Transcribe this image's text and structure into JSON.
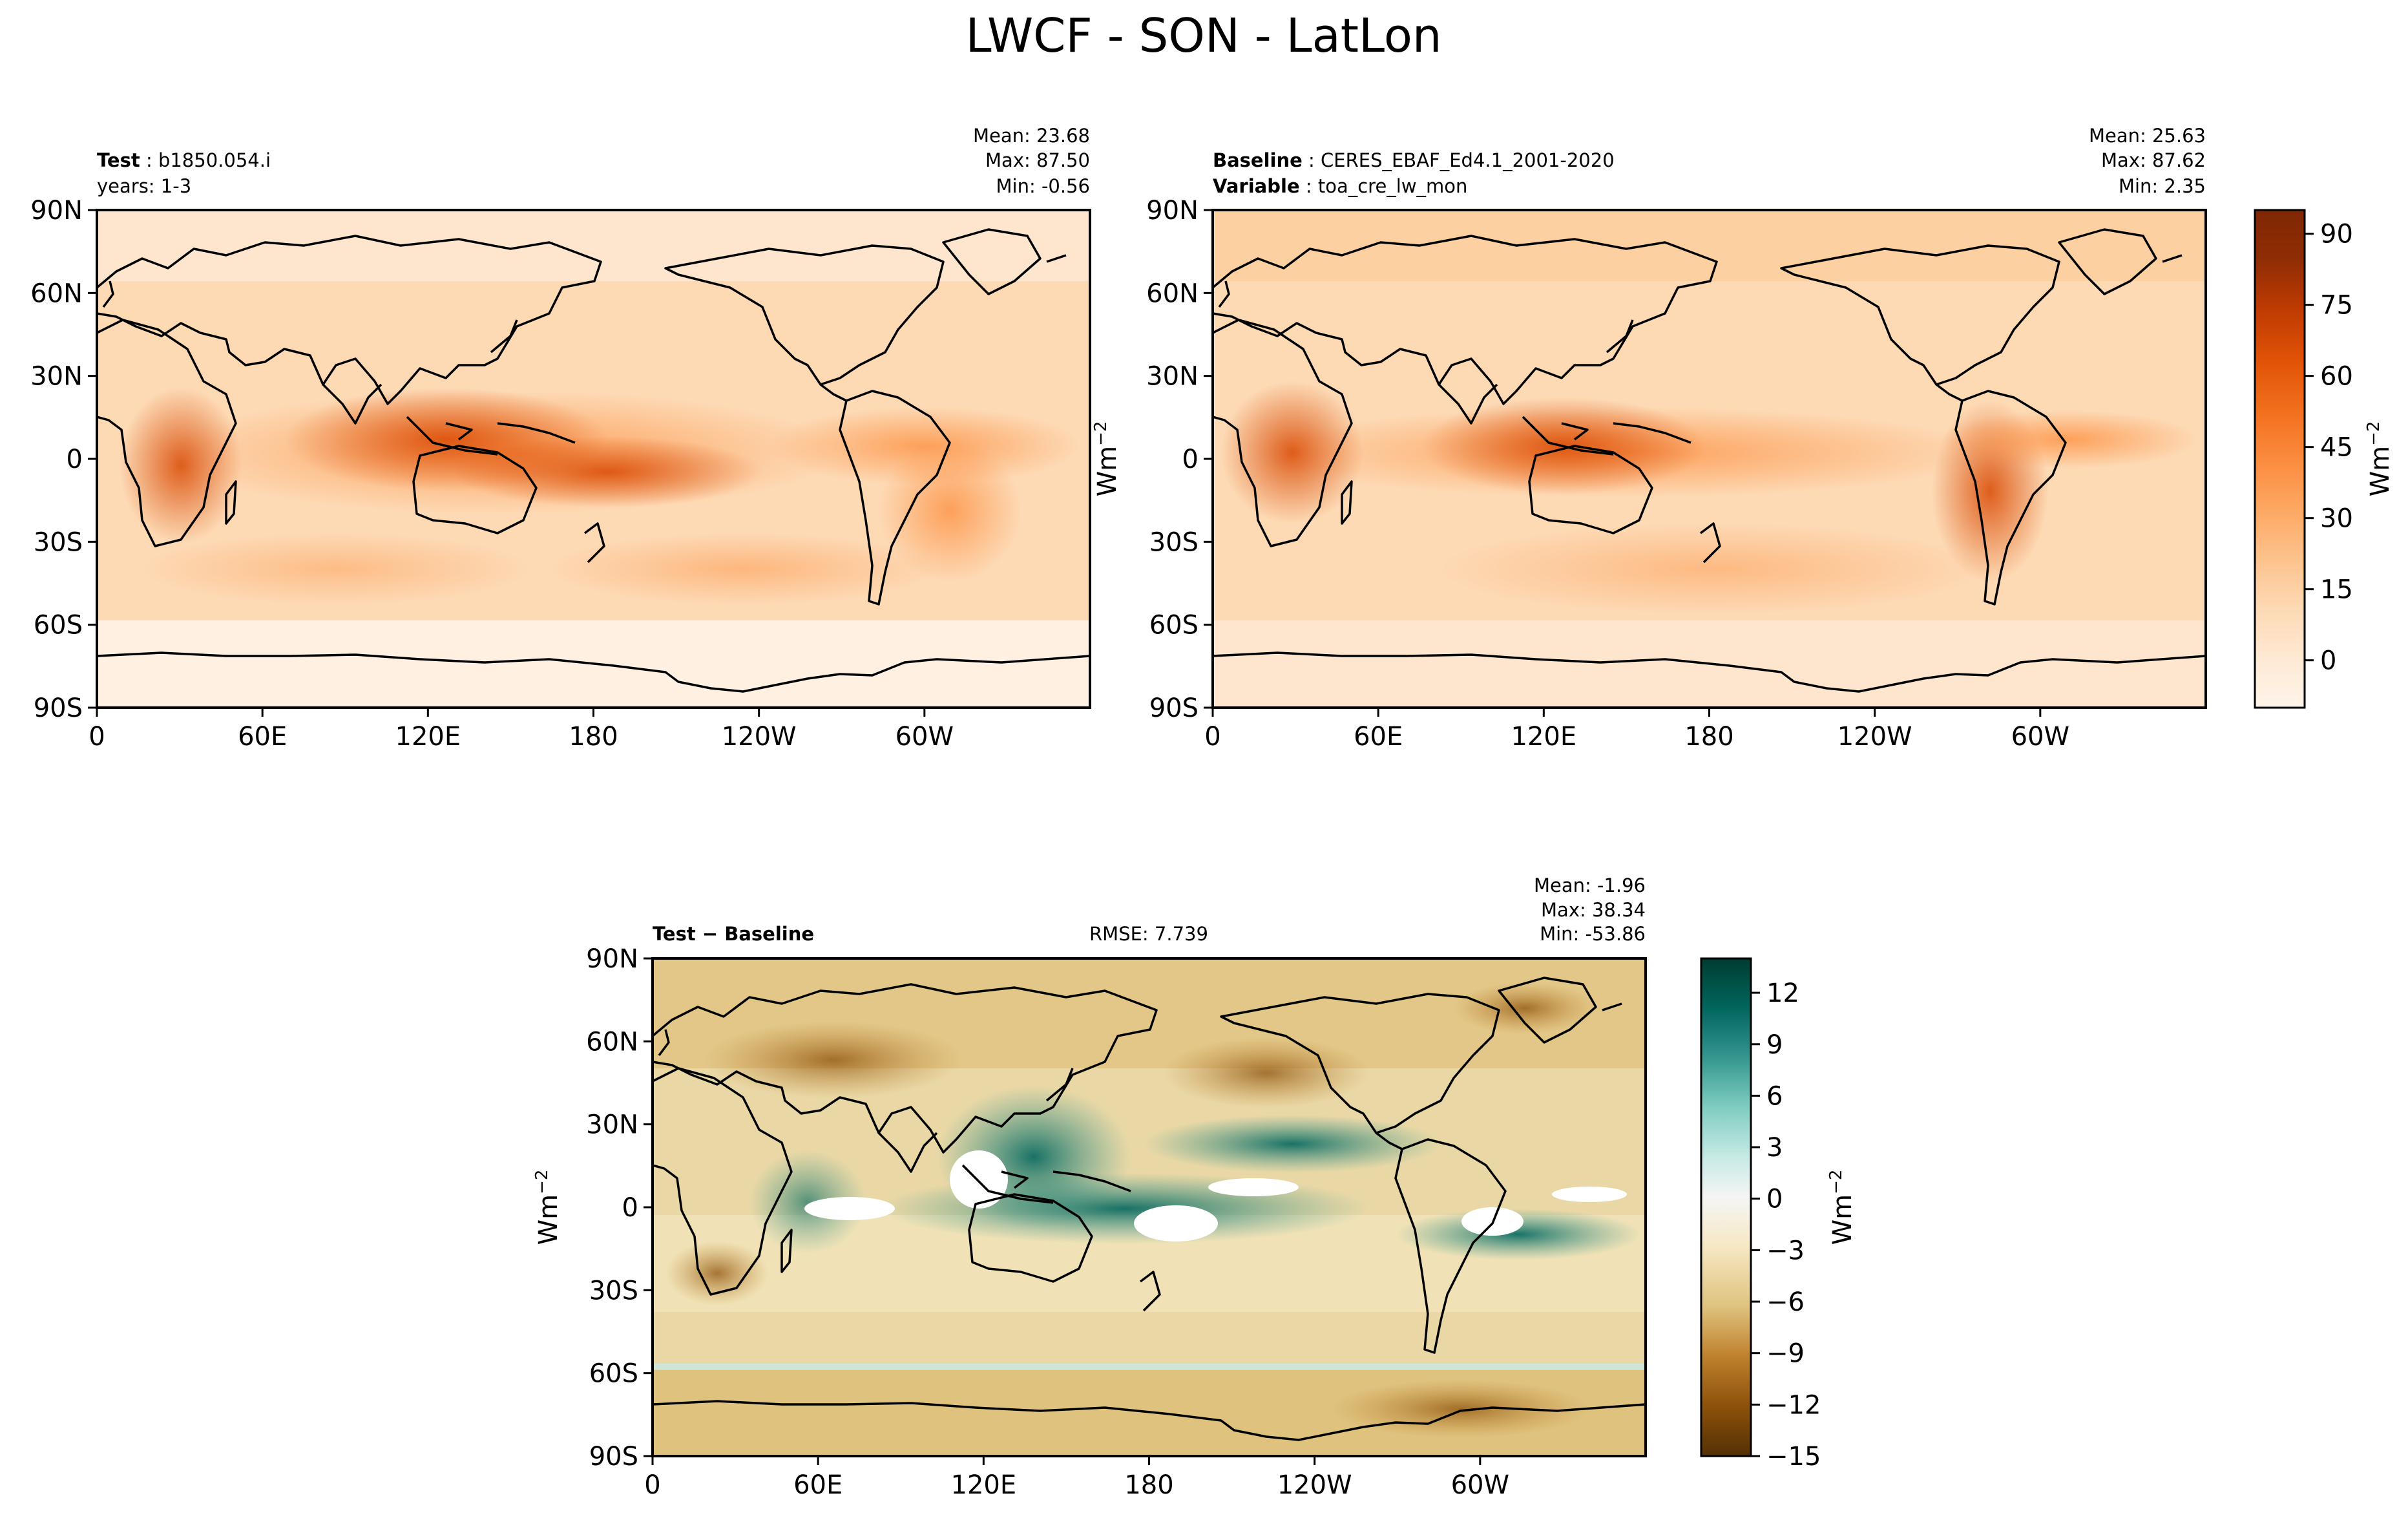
{
  "figure": {
    "title": "LWCF - SON - LatLon"
  },
  "colors": {
    "oranges": [
      "#fff5eb",
      "#fee9d3",
      "#fdd9b4",
      "#fdc28c",
      "#fda762",
      "#fb8b3d",
      "#f16e1d",
      "#e05206",
      "#bf3b02",
      "#8f2d04",
      "#7f2704"
    ],
    "brbg": [
      "#543005",
      "#8c510a",
      "#bf812d",
      "#dfc27d",
      "#f6e8c3",
      "#f5f5f5",
      "#c7eae5",
      "#80cdc1",
      "#35978f",
      "#01665e",
      "#003c30"
    ],
    "coastline": "#000000",
    "frame": "#000000"
  },
  "chart_data": [
    {
      "type": "heatmap",
      "panel": "test",
      "header_left_bold": "Test",
      "header_left_text": "b1850.054.i",
      "header_left_line2": "years: 1-3",
      "stats": [
        "Mean: 23.68",
        "Max: 87.50",
        "Min: -0.56"
      ],
      "mean": 23.68,
      "max": 87.5,
      "min": -0.56,
      "x_ticks": [
        "0",
        "60E",
        "120E",
        "180",
        "120W",
        "60W"
      ],
      "y_ticks": [
        "90N",
        "60N",
        "30N",
        "0",
        "30S",
        "60S",
        "90S"
      ],
      "xlim": [
        0,
        360
      ],
      "ylim": [
        -90,
        90
      ],
      "colormap": "oranges"
    },
    {
      "type": "heatmap",
      "panel": "baseline",
      "header_left_bold": "Baseline",
      "header_left_text": "CERES_EBAF_Ed4.1_2001-2020",
      "header_left_bold2": "Variable",
      "header_left_text2": "toa_cre_lw_mon",
      "stats": [
        "Mean: 25.63",
        "Max: 87.62",
        "Min:  2.35"
      ],
      "mean": 25.63,
      "max": 87.62,
      "min": 2.35,
      "x_ticks": [
        "0",
        "60E",
        "120E",
        "180",
        "120W",
        "60W"
      ],
      "y_ticks": [
        "90N",
        "60N",
        "30N",
        "0",
        "30S",
        "60S",
        "90S"
      ],
      "xlim": [
        0,
        360
      ],
      "ylim": [
        -90,
        90
      ],
      "colormap": "oranges",
      "ylabel": "Wm$^{-2}$"
    },
    {
      "type": "heatmap",
      "panel": "difference",
      "header_left_bold": "Test − Baseline",
      "center_text": "RMSE: 7.739",
      "rmse": 7.739,
      "stats": [
        "Mean: -1.96",
        "Max: 38.34",
        "Min: -53.86"
      ],
      "mean": -1.96,
      "max": 38.34,
      "min": -53.86,
      "x_ticks": [
        "0",
        "60E",
        "120E",
        "180",
        "120W",
        "60W"
      ],
      "y_ticks": [
        "90N",
        "60N",
        "30N",
        "0",
        "30S",
        "60S",
        "90S"
      ],
      "xlim": [
        0,
        360
      ],
      "ylim": [
        -90,
        90
      ],
      "colormap": "brbg",
      "ylabel": "Wm$^{-2}$"
    }
  ],
  "colorbars": {
    "top": {
      "ticks": [
        "90",
        "75",
        "60",
        "45",
        "30",
        "15",
        "0"
      ],
      "values": [
        90,
        75,
        60,
        45,
        30,
        15,
        0
      ],
      "range": [
        -10,
        95
      ],
      "label": "Wm$^{-2}$"
    },
    "diff": {
      "ticks": [
        "12",
        "9",
        "6",
        "3",
        "0",
        "−3",
        "−6",
        "−9",
        "−12",
        "−15"
      ],
      "values": [
        12,
        9,
        6,
        3,
        0,
        -3,
        -6,
        -9,
        -12,
        -15
      ],
      "range": [
        -15,
        14
      ],
      "label": "Wm$^{-2}$"
    }
  }
}
